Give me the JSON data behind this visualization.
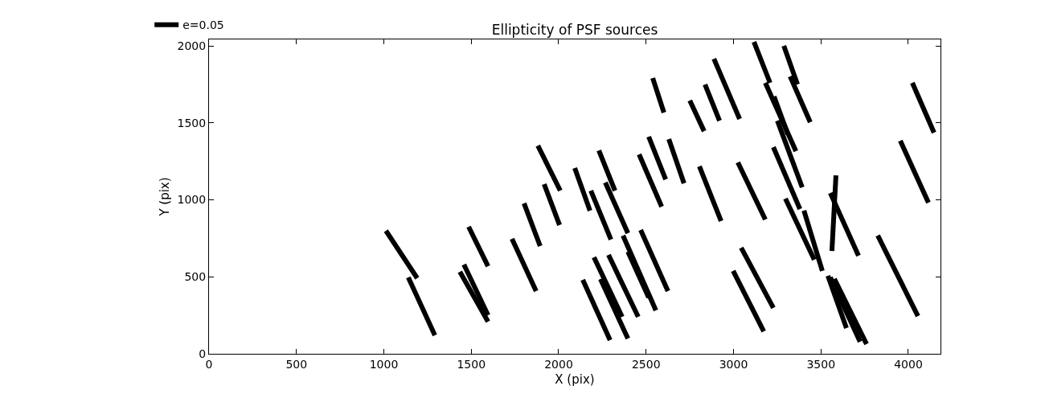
{
  "chart_data": {
    "type": "line",
    "title": "Ellipticity of PSF sources",
    "xlabel": "X (pix)",
    "ylabel": "Y (pix)",
    "x": [
      1012,
      1191,
      null,
      1140,
      1292,
      null,
      1485,
      1596,
      null,
      1435,
      1596,
      null,
      1458,
      1596,
      null,
      1733,
      1871,
      null,
      1802,
      1894,
      null,
      1881,
      2009,
      null,
      1917,
      2005,
      null,
      2092,
      2179,
      null,
      2184,
      2299,
      null,
      2230,
      2322,
      null,
      2267,
      2396,
      null,
      2460,
      2589,
      null,
      2515,
      2612,
      null,
      2630,
      2717,
      null,
      2138,
      2294,
      null,
      2202,
      2363,
      null,
      2239,
      2396,
      null,
      2285,
      2455,
      null,
      2368,
      2556,
      null,
      2396,
      2515,
      null,
      2469,
      2625,
      null,
      2538,
      2602,
      null,
      2750,
      2832,
      null,
      2837,
      2920,
      null,
      2888,
      3035,
      null,
      2805,
      2929,
      null,
      3117,
      3209,
      null,
      3288,
      3366,
      null,
      3324,
      3439,
      null,
      3182,
      3357,
      null,
      3232,
      3311,
      null,
      3251,
      3393,
      null,
      3228,
      3380,
      null,
      3025,
      3182,
      null,
      4023,
      4147,
      null,
      3954,
      4115,
      null,
      3586,
      3563,
      null,
      3554,
      3715,
      null,
      3297,
      3462,
      null,
      3403,
      3508,
      null,
      3044,
      3228,
      null,
      2998,
      3173,
      null,
      3825,
      4055,
      null,
      3540,
      3646,
      null,
      3554,
      3724,
      null,
      3577,
      3761
    ],
    "series": [
      {
        "name": "e=0.05",
        "color": "#000000",
        "values": [
          799,
          491,
          null,
          496,
          120,
          null,
          825,
          569,
          null,
          533,
          209,
          null,
          580,
          251,
          null,
          747,
          407,
          null,
          977,
          700,
          null,
          1352,
          1060,
          null,
          1102,
          836,
          null,
          1206,
          930,
          null,
          1060,
          742,
          null,
          1321,
          1060,
          null,
          1112,
          783,
          null,
          1295,
          956,
          null,
          1410,
          1133,
          null,
          1394,
          1107,
          null,
          480,
          89,
          null,
          627,
          240,
          null,
          486,
          99,
          null,
          642,
          240,
          null,
          768,
          282,
          null,
          663,
          366,
          null,
          804,
          407,
          null,
          1791,
          1567,
          null,
          1645,
          1446,
          null,
          1749,
          1514,
          null,
          1916,
          1525,
          null,
          1217,
          862,
          null,
          2026,
          1760,
          null,
          2000,
          1749,
          null,
          1802,
          1504,
          null,
          1760,
          1316,
          null,
          1671,
          1426,
          null,
          1514,
          1081,
          null,
          1342,
          940,
          null,
          1243,
          872,
          null,
          1760,
          1436,
          null,
          1384,
          982,
          null,
          1159,
          668,
          null,
          1044,
          637,
          null,
          1008,
          611,
          null,
          930,
          538,
          null,
          689,
          298,
          null,
          538,
          146,
          null,
          768,
          245,
          null,
          507,
          167,
          null,
          496,
          78,
          null,
          486,
          63
        ]
      }
    ],
    "xlim": [
      0,
      4184
    ],
    "ylim": [
      0,
      2042
    ],
    "xticks": [
      0,
      500,
      1000,
      1500,
      2000,
      2500,
      3000,
      3500,
      4000
    ],
    "yticks": [
      0,
      500,
      1000,
      1500,
      2000
    ],
    "legend": "top left",
    "marker": "none",
    "line_style": "solid"
  }
}
